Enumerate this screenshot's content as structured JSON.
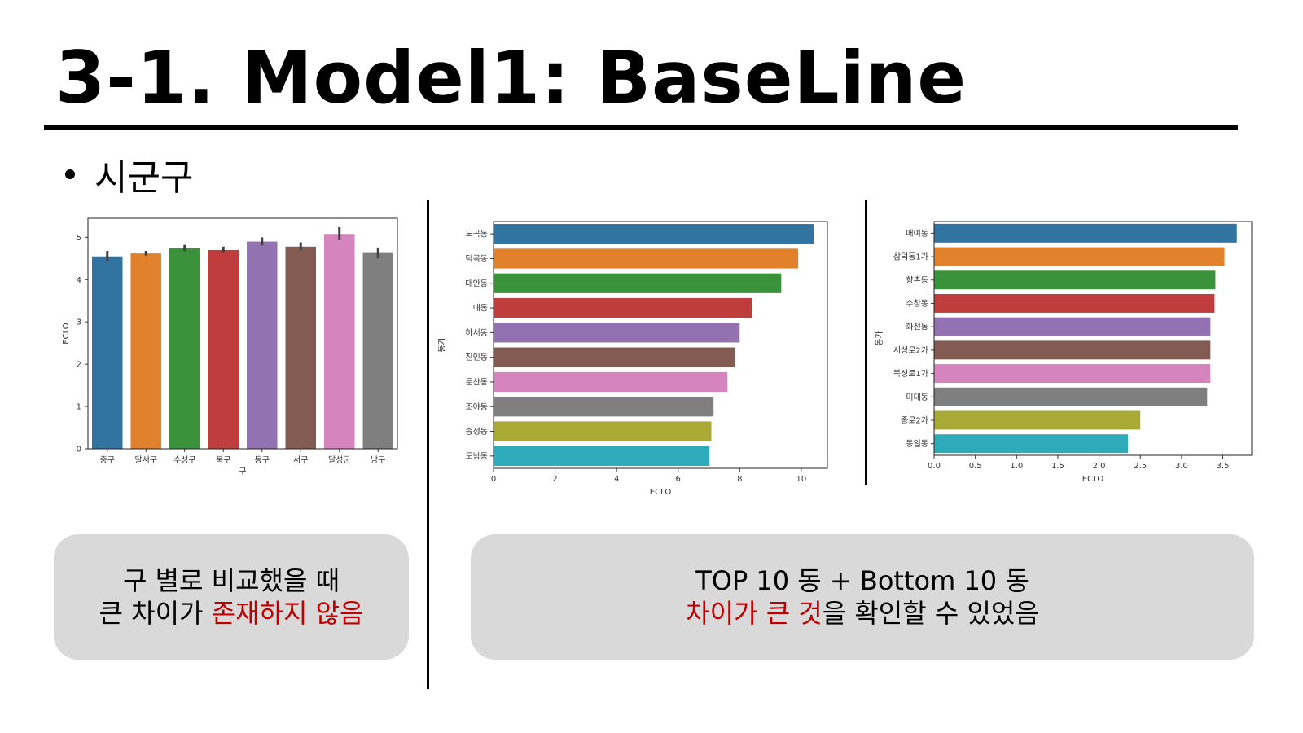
{
  "slide": {
    "title": "3-1. Model1: BaseLine",
    "bullet": "시군구"
  },
  "notes": {
    "left": {
      "line1": "구 별로 비교했을 때",
      "line2_plain": "큰 차이가 ",
      "line2_red": "존재하지 않음"
    },
    "right": {
      "line1": "TOP 10 동 + Bottom 10 동",
      "line2_red": "차이가 큰 것",
      "line2_plain": "을 확인할 수 있었음"
    }
  },
  "colors": [
    "#3274a1",
    "#e1812c",
    "#3a923a",
    "#c03d3e",
    "#9372b2",
    "#845b53",
    "#d684bd",
    "#7f7f7f",
    "#a9aa35",
    "#2eabb8"
  ],
  "chart_data": [
    {
      "type": "bar",
      "orientation": "vertical",
      "xlabel": "구",
      "ylabel": "ECLO",
      "categories": [
        "중구",
        "달서구",
        "수성구",
        "북구",
        "동구",
        "서구",
        "달성군",
        "남구"
      ],
      "values": [
        4.55,
        4.62,
        4.74,
        4.7,
        4.9,
        4.78,
        5.08,
        4.63
      ],
      "error_low": [
        4.43,
        4.57,
        4.67,
        4.63,
        4.81,
        4.69,
        4.93,
        4.5
      ],
      "error_high": [
        4.68,
        4.68,
        4.82,
        4.78,
        5.0,
        4.88,
        5.24,
        4.76
      ],
      "ylim": [
        0,
        5.45
      ],
      "yticks": [
        0,
        1,
        2,
        3,
        4,
        5
      ]
    },
    {
      "type": "bar",
      "orientation": "horizontal",
      "xlabel": "ECLO",
      "ylabel": "동가",
      "categories": [
        "노곡동",
        "덕곡동",
        "대안동",
        "내동",
        "하서동",
        "진인동",
        "둔산동",
        "조야동",
        "송정동",
        "도남동"
      ],
      "values": [
        10.4,
        9.9,
        9.35,
        8.4,
        8.0,
        7.85,
        7.6,
        7.15,
        7.08,
        7.02
      ],
      "xlim": [
        0,
        10.85
      ],
      "xticks": [
        0,
        2,
        4,
        6,
        8,
        10
      ]
    },
    {
      "type": "bar",
      "orientation": "horizontal",
      "xlabel": "ECLO",
      "ylabel": "동가",
      "categories": [
        "매여동",
        "삼덕동1가",
        "향촌동",
        "수창동",
        "화전동",
        "서성로2가",
        "북성로1가",
        "미대동",
        "종로2가",
        "동일동"
      ],
      "values": [
        3.67,
        3.52,
        3.41,
        3.4,
        3.35,
        3.35,
        3.35,
        3.31,
        2.5,
        2.35
      ],
      "xlim": [
        0,
        3.85
      ],
      "xticks": [
        "0.0",
        "0.5",
        "1.0",
        "1.5",
        "2.0",
        "2.5",
        "3.0",
        "3.5"
      ]
    }
  ]
}
